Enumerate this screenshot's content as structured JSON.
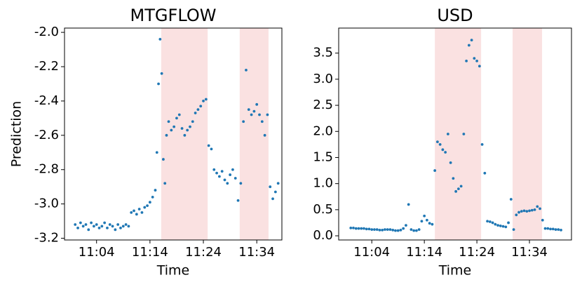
{
  "chart_data": [
    {
      "type": "scatter",
      "title": "MTGFLOW",
      "x_label": "Time",
      "y_label": "Prediction",
      "color": "#1f77b4",
      "xlim": [
        658,
        698.7
      ],
      "ylim": [
        -3.21,
        -1.975
      ],
      "xticks": [
        {
          "value": 664,
          "label": "11:04"
        },
        {
          "value": 674,
          "label": "11:14"
        },
        {
          "value": 684,
          "label": "11:24"
        },
        {
          "value": 694,
          "label": "11:34"
        }
      ],
      "yticks": [
        {
          "value": -3.2,
          "label": "-3.2"
        },
        {
          "value": -3.0,
          "label": "-3.0"
        },
        -2.8,
        -2.6,
        -2.4,
        -2.2,
        {
          "value": -2.0,
          "label": "-2.0"
        }
      ],
      "spans": [
        [
          676.1,
          684.8
        ],
        [
          690.8,
          696.2
        ]
      ],
      "span_color": "#f8d7d7",
      "x": [
        660,
        660.5,
        661,
        661.5,
        662,
        662.5,
        663,
        663.5,
        664,
        664.5,
        665,
        665.5,
        666,
        666.5,
        667,
        667.5,
        668,
        668.5,
        669,
        669.5,
        670,
        670.5,
        671,
        671.5,
        672,
        672.5,
        673,
        673.5,
        674,
        674.5,
        675,
        675.3,
        675.6,
        675.9,
        676.2,
        676.5,
        676.8,
        677.1,
        677.5,
        678,
        678.5,
        679,
        679.5,
        680,
        680.5,
        681,
        681.5,
        682,
        682.5,
        683,
        683.5,
        684,
        684.5,
        685,
        685.5,
        686,
        686.5,
        687,
        687.5,
        688,
        688.5,
        689,
        689.5,
        690,
        690.5,
        691,
        691.5,
        692,
        692.5,
        693,
        693.5,
        694,
        694.5,
        695,
        695.5,
        696,
        696.5,
        697,
        697.5,
        698
      ],
      "values": [
        -3.12,
        -3.14,
        -3.11,
        -3.13,
        -3.12,
        -3.15,
        -3.11,
        -3.13,
        -3.12,
        -3.14,
        -3.13,
        -3.11,
        -3.14,
        -3.12,
        -3.13,
        -3.15,
        -3.12,
        -3.14,
        -3.13,
        -3.12,
        -3.13,
        -3.05,
        -3.04,
        -3.06,
        -3.03,
        -3.05,
        -3.02,
        -3.01,
        -2.99,
        -2.96,
        -2.92,
        -2.7,
        -2.3,
        -2.04,
        -2.24,
        -2.74,
        -2.88,
        -2.6,
        -2.52,
        -2.57,
        -2.55,
        -2.5,
        -2.48,
        -2.56,
        -2.6,
        -2.57,
        -2.55,
        -2.52,
        -2.47,
        -2.45,
        -2.43,
        -2.4,
        -2.39,
        -2.66,
        -2.68,
        -2.8,
        -2.82,
        -2.84,
        -2.81,
        -2.86,
        -2.88,
        -2.83,
        -2.8,
        -2.85,
        -2.98,
        -2.88,
        -2.52,
        -2.22,
        -2.45,
        -2.48,
        -2.46,
        -2.42,
        -2.48,
        -2.52,
        -2.6,
        -2.48,
        -2.9,
        -2.97,
        -2.93,
        -2.88
      ]
    },
    {
      "type": "scatter",
      "title": "USD",
      "x_label": "Time",
      "color": "#1f77b4",
      "xlim": [
        657.7,
        702
      ],
      "ylim": [
        -0.08,
        3.98
      ],
      "xticks": [
        {
          "value": 664,
          "label": "11:04"
        },
        {
          "value": 674,
          "label": "11:14"
        },
        {
          "value": 684,
          "label": "11:24"
        },
        {
          "value": 694,
          "label": "11:34"
        }
      ],
      "yticks": [
        {
          "value": 0,
          "label": "0.0"
        },
        0.5,
        {
          "value": 1,
          "label": "1.0"
        },
        1.5,
        {
          "value": 2,
          "label": "2.0"
        },
        2.5,
        {
          "value": 3,
          "label": "3.0"
        },
        3.5
      ],
      "spans": [
        [
          676,
          684.8
        ],
        [
          690.8,
          696.4
        ]
      ],
      "span_color": "#f8d7d7",
      "x": [
        660,
        660.5,
        661,
        661.5,
        662,
        662.5,
        663,
        663.5,
        664,
        664.5,
        665,
        665.5,
        666,
        666.5,
        667,
        667.5,
        668,
        668.5,
        669,
        669.5,
        670,
        670.5,
        671,
        671.5,
        672,
        672.5,
        673,
        673.5,
        674,
        674.5,
        675,
        675.5,
        676,
        676.5,
        677,
        677.5,
        678,
        678.5,
        679,
        679.5,
        680,
        680.5,
        681,
        681.5,
        682,
        682.5,
        683,
        683.5,
        684,
        684.5,
        685,
        685.5,
        686,
        686.5,
        687,
        687.5,
        688,
        688.5,
        689,
        689.5,
        690,
        690.5,
        691,
        691.5,
        692,
        692.5,
        693,
        693.5,
        694,
        694.5,
        695,
        695.5,
        696,
        696.5,
        697,
        697.5,
        698,
        698.5,
        699,
        699.5,
        700
      ],
      "values": [
        0.15,
        0.15,
        0.14,
        0.14,
        0.14,
        0.14,
        0.13,
        0.13,
        0.12,
        0.12,
        0.12,
        0.11,
        0.11,
        0.12,
        0.12,
        0.12,
        0.11,
        0.1,
        0.1,
        0.11,
        0.14,
        0.2,
        0.6,
        0.12,
        0.1,
        0.1,
        0.12,
        0.28,
        0.38,
        0.3,
        0.24,
        0.22,
        1.25,
        1.8,
        1.75,
        1.65,
        1.6,
        1.95,
        1.4,
        1.1,
        0.85,
        0.9,
        0.95,
        1.95,
        3.35,
        3.65,
        3.75,
        3.4,
        3.35,
        3.25,
        1.75,
        1.2,
        0.28,
        0.27,
        0.25,
        0.22,
        0.2,
        0.19,
        0.18,
        0.17,
        0.25,
        0.7,
        0.12,
        0.4,
        0.45,
        0.47,
        0.48,
        0.47,
        0.48,
        0.49,
        0.5,
        0.56,
        0.52,
        0.3,
        0.14,
        0.14,
        0.13,
        0.13,
        0.12,
        0.12,
        0.11
      ]
    }
  ]
}
